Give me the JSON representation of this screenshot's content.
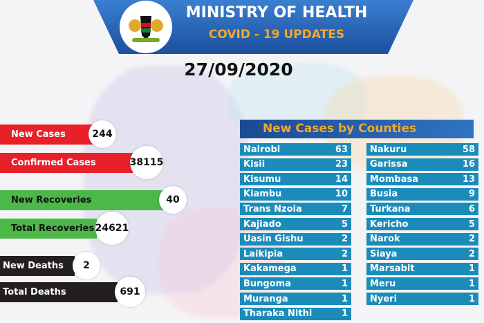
{
  "header": {
    "title": "MINISTRY OF HEALTH",
    "subtitle": "COVID - 19 UPDATES",
    "date": "27/09/2020"
  },
  "stats": [
    {
      "label": "New Cases",
      "value": "244",
      "color": "#e8202a"
    },
    {
      "label": "Confirmed Cases",
      "value": "38115",
      "color": "#e8202a"
    },
    {
      "label": "New Recoveries",
      "value": "40",
      "color": "#4cb848"
    },
    {
      "label": "Total Recoveries",
      "value": "24621",
      "color": "#4cb848"
    },
    {
      "label": "New Deaths",
      "value": "2",
      "color": "#231f20"
    },
    {
      "label": "Total Deaths",
      "value": "691",
      "color": "#231f20"
    }
  ],
  "counties": {
    "title": "New Cases by Counties",
    "left": [
      [
        "Nairobi",
        "63"
      ],
      [
        "Kisii",
        "23"
      ],
      [
        "Kisumu",
        "14"
      ],
      [
        "Kiambu",
        "10"
      ],
      [
        "Trans Nzoia",
        "7"
      ],
      [
        "Kajiado",
        "5"
      ],
      [
        "Uasin Gishu",
        "2"
      ],
      [
        "Laikipia",
        "2"
      ],
      [
        "Kakamega",
        "1"
      ],
      [
        "Bungoma",
        "1"
      ],
      [
        "Muranga",
        "1"
      ],
      [
        "Tharaka Nithi",
        "1"
      ]
    ],
    "right": [
      [
        "Nakuru",
        "58"
      ],
      [
        "Garissa",
        "16"
      ],
      [
        "Mombasa",
        "13"
      ],
      [
        "Busia",
        "9"
      ],
      [
        "Turkana",
        "6"
      ],
      [
        "Kericho",
        "5"
      ],
      [
        "Narok",
        "2"
      ],
      [
        "Siaya",
        "2"
      ],
      [
        "Marsabit",
        "1"
      ],
      [
        "Meru",
        "1"
      ],
      [
        "Nyeri",
        "1"
      ]
    ]
  }
}
